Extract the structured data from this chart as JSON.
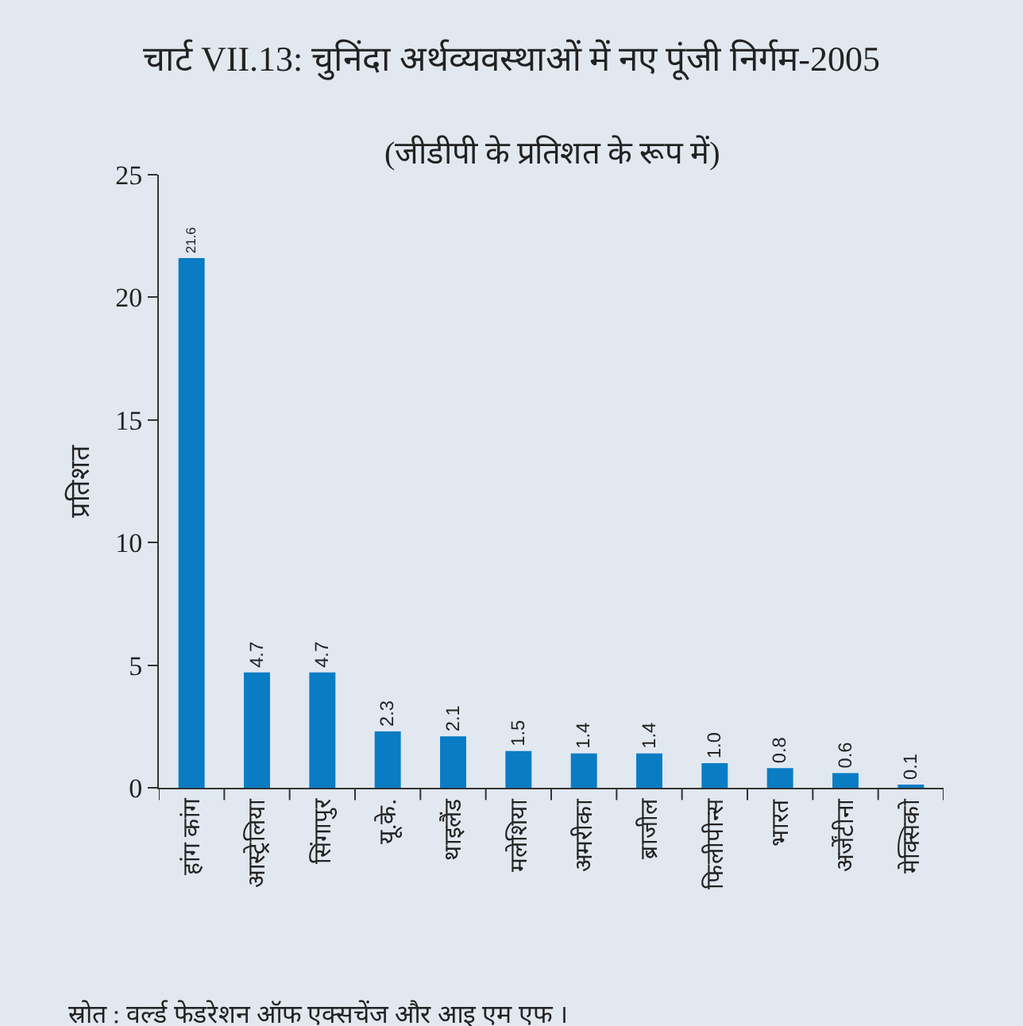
{
  "chart_data": {
    "type": "bar",
    "title": "चार्ट VII.13: चुनिंदा अर्थव्यवस्थाओं में नए पूंजी निर्गम-2005",
    "subtitle": "(जीडीपी के प्रतिशत के रूप में)",
    "ylabel": "प्रतिशत",
    "categories": [
      "हांग कांग",
      "आस्ट्रेलिया",
      "सिंगापुर",
      "यू.के.",
      "थाइलैंड",
      "मलेशिया",
      "अमरीका",
      "ब्राजील",
      "फिलीपीन्स",
      "भारत",
      "अर्जेंटीना",
      "मेक्सिको"
    ],
    "values": [
      21.6,
      4.7,
      4.7,
      2.3,
      2.1,
      1.5,
      1.4,
      1.4,
      1.0,
      0.8,
      0.6,
      0.1
    ],
    "value_labels": [
      "21.6",
      "4.7",
      "4.7",
      "2.3",
      "2.1",
      "1.5",
      "1.4",
      "1.4",
      "1.0",
      "0.8",
      "0.6",
      "0.1"
    ],
    "color": "#0a7cc4",
    "ylim": [
      0,
      25
    ],
    "yticks": [
      0,
      5,
      10,
      15,
      20,
      25
    ],
    "grid": false,
    "legend": false,
    "annotations": [
      "स्रोत : वर्ल्ड फेडरेशन ऑफ एक्सचेंज और आइ एम एफ ।"
    ]
  }
}
